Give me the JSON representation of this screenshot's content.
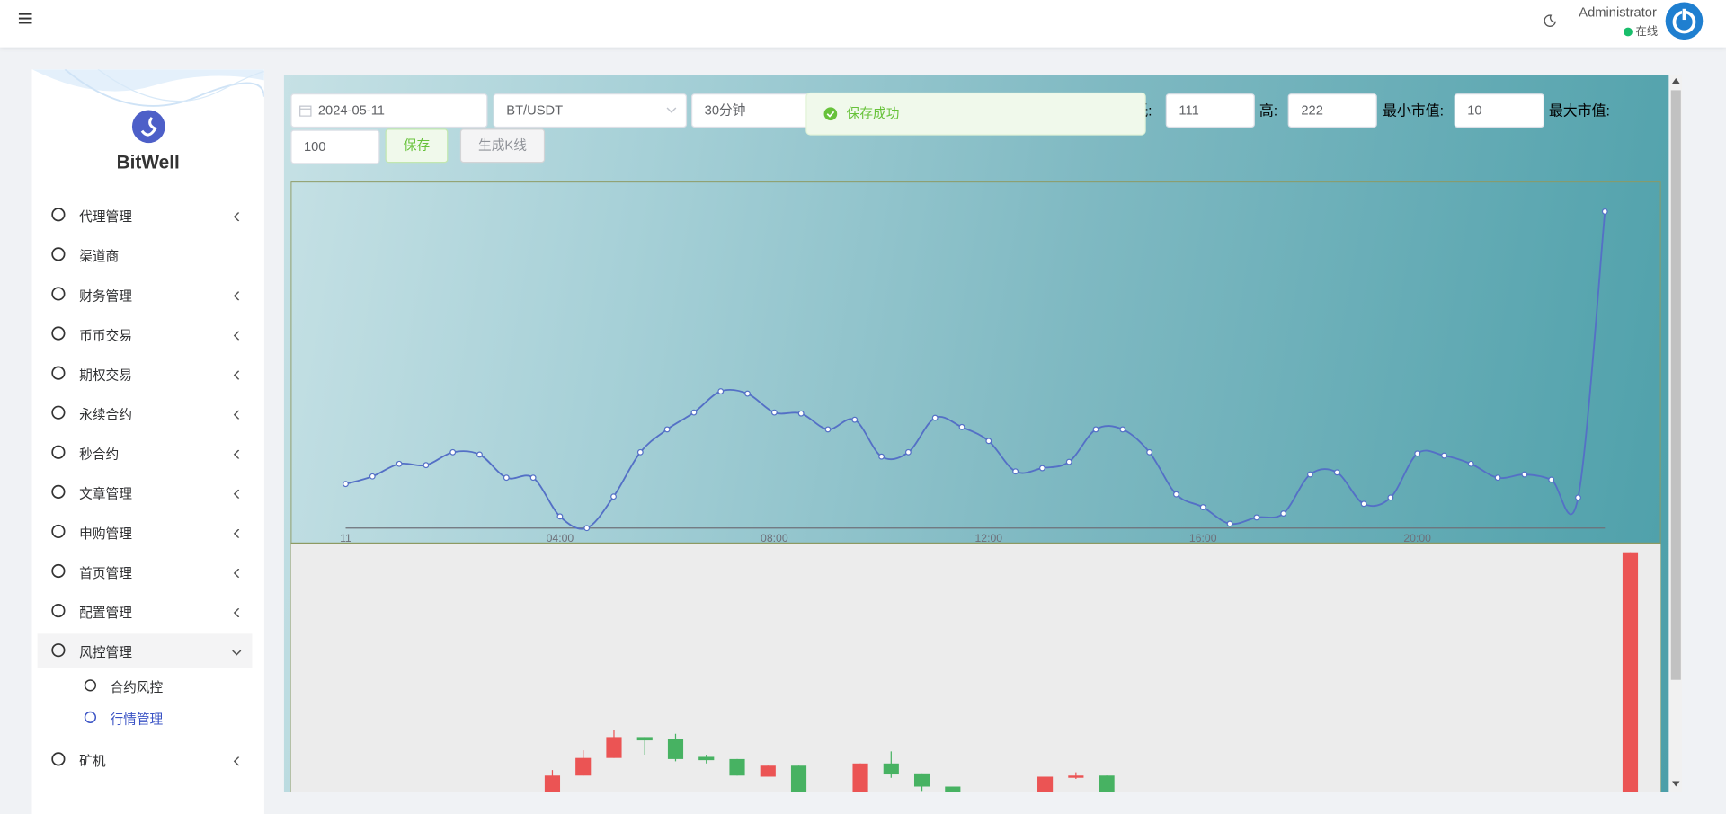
{
  "header": {
    "user_name": "Administrator",
    "status": "在线"
  },
  "sidebar": {
    "brand": "BitWell",
    "menu": [
      {
        "label": "代理管理",
        "submenu": true
      },
      {
        "label": "渠道商",
        "submenu": false
      },
      {
        "label": "财务管理",
        "submenu": true
      },
      {
        "label": "币币交易",
        "submenu": true
      },
      {
        "label": "期权交易",
        "submenu": true
      },
      {
        "label": "永续合约",
        "submenu": true
      },
      {
        "label": "秒合约",
        "submenu": true
      },
      {
        "label": "文章管理",
        "submenu": true
      },
      {
        "label": "申购管理",
        "submenu": true
      },
      {
        "label": "首页管理",
        "submenu": true
      },
      {
        "label": "配置管理",
        "submenu": true
      },
      {
        "label": "风控管理",
        "submenu": true,
        "expanded": true,
        "children": [
          {
            "label": "合约风控",
            "active": false
          },
          {
            "label": "行情管理",
            "active": true
          }
        ]
      },
      {
        "label": "矿机",
        "submenu": true
      }
    ]
  },
  "form": {
    "date": "2024-05-11",
    "symbol": "BT/USDT",
    "interval": "30分钟",
    "fields": [
      {
        "label": "低:",
        "value": "111"
      },
      {
        "label": "高:",
        "value": "222"
      },
      {
        "label": "最小市值:",
        "value": "10"
      },
      {
        "label": "最大市值:",
        "value": "100"
      }
    ],
    "save_button": "保存",
    "generate_button": "生成K线"
  },
  "toast": "保存成功",
  "chart_data": [
    {
      "type": "line",
      "categories": [
        "11",
        null,
        null,
        null,
        null,
        null,
        null,
        null,
        "04:00",
        null,
        null,
        null,
        null,
        null,
        null,
        null,
        "08:00",
        null,
        null,
        null,
        null,
        null,
        null,
        null,
        "12:00",
        null,
        null,
        null,
        null,
        null,
        null,
        null,
        "16:00",
        null,
        null,
        null,
        null,
        null,
        null,
        null,
        "20:00",
        null,
        null,
        null,
        null,
        null,
        null,
        null
      ],
      "series": [
        {
          "color": "#5470c6",
          "values": [
            13.3,
            15.6,
            19.4,
            19.0,
            22.9,
            22.2,
            15.2,
            15.2,
            3.5,
            0,
            9.5,
            22.9,
            29.8,
            34.9,
            41.3,
            40.6,
            34.9,
            34.6,
            29.8,
            32.7,
            21.6,
            22.9,
            33.3,
            30.5,
            26.3,
            17.1,
            18.1,
            20.0,
            29.8,
            29.8,
            22.9,
            10.2,
            6.3,
            1.3,
            3.2,
            4.4,
            16.2,
            16.8,
            7.3,
            9.2,
            22.5,
            21.9,
            19.4,
            15.2,
            16.2,
            14.6,
            9.2,
            95.6
          ]
        }
      ],
      "ylim": [
        0,
        100
      ],
      "smooth": true
    },
    {
      "type": "candlestick",
      "up_color": "#eb5454",
      "down_color": "#47b262",
      "xlim": [
        -0.5,
        44
      ],
      "ylim": [
        0,
        246
      ],
      "x": [
        8,
        9,
        10,
        11,
        12,
        13,
        14,
        15,
        16,
        18,
        19,
        20,
        21,
        24,
        25,
        26,
        43
      ],
      "open": [
        20,
        35,
        51,
        70,
        68,
        52,
        50,
        34,
        44,
        20,
        46,
        37,
        25,
        20,
        33,
        35,
        20
      ],
      "close": [
        35,
        51,
        70,
        67,
        50,
        49,
        35,
        44,
        20,
        46,
        36,
        25,
        20,
        34,
        35,
        20,
        238
      ],
      "high": [
        40,
        58,
        76,
        70,
        73,
        54,
        50,
        44,
        44,
        46,
        57,
        37,
        25,
        34,
        38,
        35,
        238
      ],
      "low": [
        20,
        35,
        51,
        54,
        48,
        46,
        35,
        34,
        20,
        20,
        33,
        21,
        20,
        20,
        32,
        20,
        20
      ]
    }
  ]
}
